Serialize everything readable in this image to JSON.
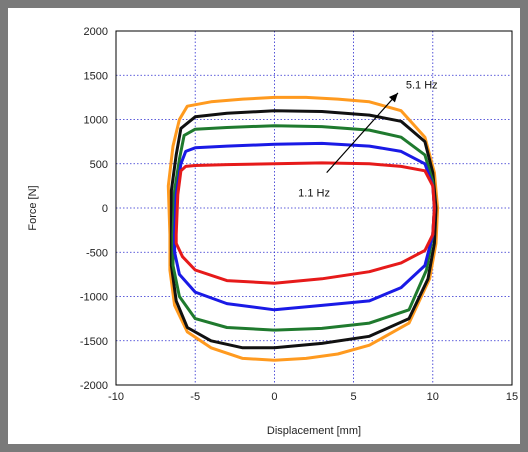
{
  "chart_data": {
    "type": "line",
    "title": "",
    "xlabel": "Displacement [mm]",
    "ylabel": "Force [N]",
    "xlim": [
      -10,
      15
    ],
    "ylim": [
      -2000,
      2000
    ],
    "xticks": [
      "-10",
      "-5",
      "0",
      "5",
      "10",
      "15"
    ],
    "yticks": [
      "2000",
      "1500",
      "1000",
      "500",
      "0",
      "-500",
      "-1000",
      "-1500",
      "-2000"
    ],
    "grid": true,
    "legend": "none",
    "annotations": {
      "high": "5.1 Hz",
      "low": "1.1 Hz"
    },
    "series": [
      {
        "color": "#ff9a1f",
        "points": [
          [
            -6.6,
            -300
          ],
          [
            -6.7,
            250
          ],
          [
            -6.4,
            700
          ],
          [
            -6.0,
            1000
          ],
          [
            -5.5,
            1150
          ],
          [
            -4,
            1200
          ],
          [
            -2,
            1230
          ],
          [
            0,
            1250
          ],
          [
            2,
            1250
          ],
          [
            4,
            1230
          ],
          [
            6,
            1200
          ],
          [
            8,
            1100
          ],
          [
            9.5,
            800
          ],
          [
            10.1,
            400
          ],
          [
            10.3,
            0
          ],
          [
            10.2,
            -400
          ],
          [
            9.8,
            -800
          ],
          [
            8.5,
            -1300
          ],
          [
            6,
            -1550
          ],
          [
            4,
            -1650
          ],
          [
            2,
            -1700
          ],
          [
            0,
            -1720
          ],
          [
            -2,
            -1700
          ],
          [
            -4,
            -1580
          ],
          [
            -5.5,
            -1400
          ],
          [
            -6.3,
            -1100
          ],
          [
            -6.6,
            -700
          ],
          [
            -6.6,
            -300
          ]
        ]
      },
      {
        "color": "#111111",
        "points": [
          [
            -6.5,
            -300
          ],
          [
            -6.5,
            200
          ],
          [
            -6.2,
            600
          ],
          [
            -5.9,
            900
          ],
          [
            -5,
            1030
          ],
          [
            -3,
            1070
          ],
          [
            0,
            1100
          ],
          [
            3,
            1090
          ],
          [
            6,
            1050
          ],
          [
            8,
            980
          ],
          [
            9.5,
            750
          ],
          [
            10,
            400
          ],
          [
            10.2,
            0
          ],
          [
            10.1,
            -400
          ],
          [
            9.7,
            -800
          ],
          [
            8.5,
            -1250
          ],
          [
            6,
            -1450
          ],
          [
            3,
            -1530
          ],
          [
            0,
            -1580
          ],
          [
            -2,
            -1580
          ],
          [
            -4,
            -1500
          ],
          [
            -5.5,
            -1350
          ],
          [
            -6.2,
            -1050
          ],
          [
            -6.5,
            -650
          ],
          [
            -6.5,
            -300
          ]
        ]
      },
      {
        "color": "#1f7a2e",
        "points": [
          [
            -6.4,
            -300
          ],
          [
            -6.3,
            200
          ],
          [
            -6.0,
            550
          ],
          [
            -5.7,
            820
          ],
          [
            -5,
            890
          ],
          [
            -3,
            910
          ],
          [
            0,
            930
          ],
          [
            3,
            920
          ],
          [
            6,
            880
          ],
          [
            8,
            800
          ],
          [
            9.5,
            600
          ],
          [
            10,
            300
          ],
          [
            10.1,
            0
          ],
          [
            10,
            -300
          ],
          [
            9.6,
            -700
          ],
          [
            8.5,
            -1150
          ],
          [
            6,
            -1300
          ],
          [
            3,
            -1360
          ],
          [
            0,
            -1380
          ],
          [
            -3,
            -1350
          ],
          [
            -5,
            -1250
          ],
          [
            -6,
            -1000
          ],
          [
            -6.4,
            -650
          ],
          [
            -6.4,
            -300
          ]
        ]
      },
      {
        "color": "#1a1ae6",
        "points": [
          [
            -6.3,
            -300
          ],
          [
            -6.2,
            150
          ],
          [
            -5.9,
            500
          ],
          [
            -5.6,
            640
          ],
          [
            -5,
            680
          ],
          [
            -3,
            700
          ],
          [
            0,
            720
          ],
          [
            3,
            730
          ],
          [
            6,
            700
          ],
          [
            8,
            640
          ],
          [
            9.5,
            500
          ],
          [
            10,
            250
          ],
          [
            10.1,
            0
          ],
          [
            10,
            -300
          ],
          [
            9.5,
            -650
          ],
          [
            8,
            -900
          ],
          [
            6,
            -1050
          ],
          [
            3,
            -1100
          ],
          [
            0,
            -1150
          ],
          [
            -3,
            -1080
          ],
          [
            -5,
            -950
          ],
          [
            -6,
            -750
          ],
          [
            -6.3,
            -500
          ],
          [
            -6.3,
            -300
          ]
        ]
      },
      {
        "color": "#e61a1a",
        "points": [
          [
            -6.2,
            -300
          ],
          [
            -6.1,
            150
          ],
          [
            -5.9,
            420
          ],
          [
            -5.6,
            470
          ],
          [
            -5,
            480
          ],
          [
            -3,
            490
          ],
          [
            0,
            500
          ],
          [
            3,
            510
          ],
          [
            6,
            500
          ],
          [
            8,
            470
          ],
          [
            9.5,
            420
          ],
          [
            10,
            250
          ],
          [
            10.1,
            0
          ],
          [
            10,
            -300
          ],
          [
            9.5,
            -480
          ],
          [
            8,
            -620
          ],
          [
            6,
            -720
          ],
          [
            3,
            -800
          ],
          [
            0,
            -850
          ],
          [
            -3,
            -820
          ],
          [
            -5,
            -700
          ],
          [
            -5.8,
            -550
          ],
          [
            -6.2,
            -400
          ],
          [
            -6.2,
            -300
          ]
        ]
      }
    ]
  }
}
